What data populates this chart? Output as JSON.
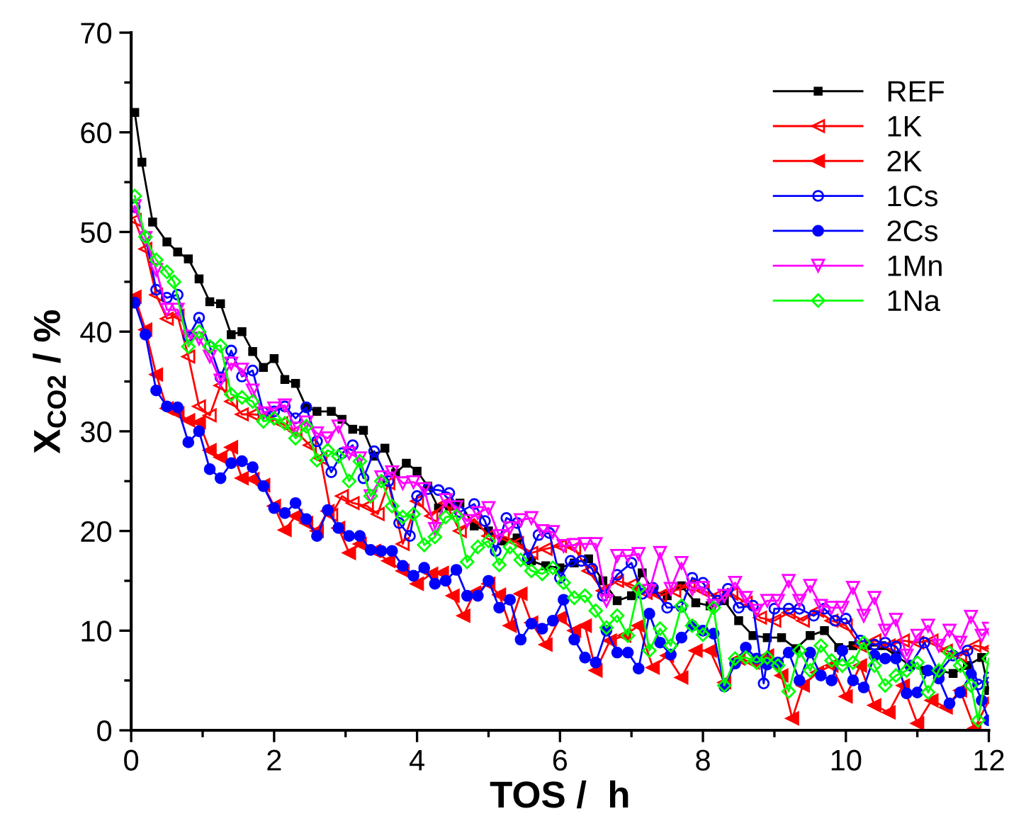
{
  "chart_data": {
    "type": "line",
    "xlabel": "TOS /  h",
    "ylabel": "X$_{CO2}$ / %",
    "xlim": [
      0,
      12
    ],
    "ylim": [
      0,
      70
    ],
    "xticks": [
      0,
      {
        "value": 1,
        "label": null
      },
      2,
      {
        "value": 3,
        "label": null
      },
      4,
      {
        "value": 5,
        "label": null
      },
      6,
      {
        "value": 7,
        "label": null
      },
      8,
      {
        "value": 9,
        "label": null
      },
      10,
      {
        "value": 11,
        "label": null
      },
      12
    ],
    "yticks": [
      0,
      {
        "value": 5,
        "label": null
      },
      10,
      {
        "value": 15,
        "label": null
      },
      20,
      {
        "value": 25,
        "label": null
      },
      30,
      {
        "value": 35,
        "label": null
      },
      40,
      {
        "value": 45,
        "label": null
      },
      50,
      {
        "value": 55,
        "label": null
      },
      60,
      {
        "value": 65,
        "label": null
      },
      70
    ],
    "grid": false,
    "legend": "top right",
    "line_style": "solid",
    "series": [
      {
        "name": "REF",
        "color": "#000000",
        "marker": "square",
        "x": [
          0.05,
          0.15,
          0.3,
          0.5,
          0.65,
          0.8,
          0.95,
          1.1,
          1.25,
          1.4,
          1.55,
          1.7,
          1.85,
          2,
          2.15,
          2.3,
          2.45,
          2.6,
          2.8,
          2.95,
          3.1,
          3.25,
          3.4,
          3.55,
          3.7,
          3.85,
          4,
          4.15,
          4.3,
          4.45,
          4.6,
          4.8,
          5,
          5.2,
          5.4,
          5.6,
          5.8,
          6,
          6.2,
          6.4,
          6.6,
          6.8,
          7,
          7.15,
          7.3,
          7.5,
          7.7,
          7.9,
          8.1,
          8.3,
          8.5,
          8.7,
          8.9,
          9.1,
          9.3,
          9.5,
          9.7,
          9.9,
          10.1,
          10.3,
          10.5,
          10.7,
          10.9,
          11.1,
          11.3,
          11.5,
          11.7,
          11.9,
          12
        ],
        "values": [
          62,
          57,
          51,
          49,
          48,
          47.3,
          45.3,
          43,
          42.8,
          39.7,
          40,
          38,
          36.4,
          37.3,
          35.2,
          34.8,
          32.4,
          32,
          32,
          31.2,
          30.2,
          30.1,
          27.5,
          28.3,
          25.8,
          26.8,
          26,
          24.5,
          22.3,
          22.5,
          22.8,
          20.5,
          20,
          19,
          19.3,
          17,
          16.5,
          16.3,
          16.8,
          17.2,
          15,
          13,
          13.5,
          15.8,
          14,
          13.5,
          14.5,
          12.8,
          12.5,
          13,
          11,
          9.5,
          9.3,
          9.3,
          8.2,
          9.5,
          10,
          8.3,
          8.5,
          8.5,
          8.5,
          7.5,
          6.5,
          6,
          6,
          5.7,
          6.5,
          7.3,
          4
        ]
      },
      {
        "name": "1K",
        "color": "#ff0000",
        "marker": "triangle-left-open",
        "x": [
          0.05,
          0.2,
          0.35,
          0.5,
          0.65,
          0.8,
          0.95,
          1.1,
          1.25,
          1.4,
          1.55,
          1.7,
          1.9,
          2.1,
          2.3,
          2.5,
          2.65,
          2.8,
          2.95,
          3.1,
          3.3,
          3.45,
          3.6,
          3.8,
          4,
          4.2,
          4.4,
          4.6,
          4.8,
          5,
          5.2,
          5.4,
          5.6,
          5.8,
          6,
          6.2,
          6.4,
          6.6,
          6.8,
          7,
          7.2,
          7.4,
          7.6,
          7.8,
          8,
          8.2,
          8.4,
          8.6,
          8.8,
          9,
          9.2,
          9.4,
          9.6,
          9.8,
          10,
          10.2,
          10.4,
          10.6,
          10.8,
          11,
          11.2,
          11.4,
          11.6,
          11.8,
          12
        ],
        "values": [
          51.2,
          48.3,
          43.7,
          41.3,
          41.6,
          37.5,
          32.5,
          31.6,
          34.6,
          33,
          31.7,
          31.7,
          31.6,
          30.8,
          30,
          28.6,
          27.3,
          21.6,
          23.5,
          22.8,
          22.5,
          21.7,
          24.8,
          18.7,
          23,
          21.5,
          22.8,
          20,
          21.2,
          19.5,
          19.5,
          18.8,
          17.8,
          18.2,
          18.5,
          18.3,
          16,
          14,
          15,
          14.6,
          13.8,
          13.5,
          14,
          14.5,
          14,
          13.5,
          13.7,
          12.8,
          11.3,
          11,
          11.8,
          11,
          12,
          11,
          10.5,
          8.5,
          9,
          8.5,
          9,
          8.8,
          9,
          8,
          7.5,
          8.5,
          8.2
        ]
      },
      {
        "name": "2K",
        "color": "#ff0000",
        "marker": "triangle-left",
        "x": [
          0.05,
          0.2,
          0.35,
          0.5,
          0.65,
          0.8,
          0.95,
          1.1,
          1.25,
          1.4,
          1.55,
          1.7,
          1.85,
          2,
          2.15,
          2.3,
          2.45,
          2.6,
          2.75,
          2.9,
          3.05,
          3.2,
          3.4,
          3.6,
          3.8,
          4,
          4.2,
          4.35,
          4.5,
          4.65,
          4.8,
          5,
          5.15,
          5.3,
          5.45,
          5.6,
          5.8,
          6,
          6.2,
          6.35,
          6.5,
          6.7,
          6.9,
          7.1,
          7.3,
          7.5,
          7.7,
          7.9,
          8.1,
          8.3,
          8.5,
          8.7,
          8.9,
          9.1,
          9.25,
          9.4,
          9.6,
          9.8,
          10,
          10.2,
          10.4,
          10.6,
          10.8,
          11,
          11.2,
          11.4,
          11.6,
          11.8,
          12
        ],
        "values": [
          43.5,
          40.2,
          35.7,
          32.3,
          31.8,
          31.1,
          30.9,
          28.1,
          27.4,
          28.4,
          25.3,
          25.2,
          24.6,
          22.5,
          20.1,
          21.5,
          20.8,
          20,
          22,
          20.3,
          17.8,
          18.7,
          18,
          17,
          16,
          14.7,
          15.7,
          15.8,
          13.5,
          11.5,
          13.8,
          14.7,
          13.6,
          10.5,
          13.7,
          10.8,
          8.6,
          11.3,
          10,
          10.5,
          6,
          9,
          9.5,
          10.5,
          6.3,
          7.5,
          5.3,
          8,
          8,
          4.8,
          7.2,
          6.8,
          7.5,
          5.5,
          1.2,
          4.5,
          5.8,
          6.5,
          3.4,
          6.5,
          2.5,
          1.8,
          4.5,
          0.7,
          3,
          2.3,
          4,
          0.2,
          3
        ]
      },
      {
        "name": "1Cs",
        "color": "#0000ff",
        "marker": "circle-open",
        "x": [
          0.05,
          0.2,
          0.35,
          0.5,
          0.65,
          0.8,
          0.95,
          1.1,
          1.25,
          1.4,
          1.55,
          1.7,
          1.85,
          2,
          2.15,
          2.3,
          2.45,
          2.6,
          2.8,
          2.95,
          3.1,
          3.25,
          3.4,
          3.6,
          3.75,
          3.9,
          4,
          4.15,
          4.3,
          4.45,
          4.6,
          4.8,
          4.95,
          5.1,
          5.25,
          5.4,
          5.55,
          5.7,
          5.85,
          6,
          6.15,
          6.3,
          6.45,
          6.6,
          6.8,
          7,
          7.15,
          7.3,
          7.5,
          7.7,
          7.85,
          8,
          8.2,
          8.35,
          8.5,
          8.7,
          8.85,
          9,
          9.2,
          9.35,
          9.55,
          9.7,
          9.85,
          10,
          10.2,
          10.4,
          10.55,
          10.7,
          10.9,
          11.1,
          11.3,
          11.5,
          11.7,
          11.85,
          12
        ],
        "values": [
          52.5,
          49.5,
          44.2,
          43.4,
          43.7,
          39.5,
          41.4,
          38.5,
          35.4,
          38.1,
          35.5,
          36.1,
          31.9,
          32,
          32.5,
          31.3,
          32.4,
          29,
          25.9,
          27.8,
          28.6,
          25.3,
          28,
          25,
          20.8,
          19.5,
          23.5,
          24.2,
          24.1,
          23.8,
          21.9,
          22.7,
          21,
          18,
          21.3,
          20.8,
          17.3,
          19.6,
          19.8,
          15.3,
          17,
          17,
          16.2,
          13.5,
          15.6,
          16.8,
          13.7,
          14.3,
          12.3,
          12.4,
          15.3,
          14.8,
          13,
          14.2,
          12.3,
          12.5,
          4.7,
          12.2,
          12.2,
          12.2,
          11.5,
          12.2,
          11,
          11.2,
          9,
          8.6,
          8.8,
          8.4,
          6.5,
          8.8,
          5.8,
          7.5,
          8,
          4.6,
          5.3
        ]
      },
      {
        "name": "2Cs",
        "color": "#0000ff",
        "marker": "circle",
        "x": [
          0.05,
          0.2,
          0.35,
          0.5,
          0.65,
          0.8,
          0.95,
          1.1,
          1.25,
          1.4,
          1.55,
          1.7,
          1.85,
          2,
          2.15,
          2.3,
          2.45,
          2.6,
          2.75,
          2.9,
          3.05,
          3.2,
          3.35,
          3.5,
          3.65,
          3.8,
          3.95,
          4.1,
          4.25,
          4.4,
          4.55,
          4.7,
          4.85,
          5,
          5.15,
          5.3,
          5.45,
          5.6,
          5.75,
          5.9,
          6.05,
          6.2,
          6.35,
          6.5,
          6.65,
          6.8,
          6.95,
          7.1,
          7.25,
          7.4,
          7.55,
          7.7,
          7.85,
          8,
          8.15,
          8.3,
          8.45,
          8.6,
          8.75,
          8.9,
          9.05,
          9.2,
          9.35,
          9.5,
          9.65,
          9.8,
          9.95,
          10.1,
          10.25,
          10.4,
          10.55,
          10.7,
          10.85,
          11,
          11.15,
          11.3,
          11.45,
          11.6,
          11.75,
          11.9,
          12
        ],
        "values": [
          42.9,
          39.7,
          34.1,
          32.5,
          32.4,
          28.9,
          30,
          26.2,
          25.3,
          26.8,
          27,
          26.4,
          24.5,
          22.3,
          21.8,
          22.8,
          21.2,
          19.5,
          22.1,
          20.3,
          19.5,
          19.5,
          18.1,
          18,
          18,
          16.5,
          15.5,
          16.3,
          14.7,
          15,
          16.1,
          13.5,
          13.5,
          15,
          12.3,
          13.1,
          9.1,
          10.7,
          10.2,
          11,
          13.1,
          9.1,
          7.3,
          6.8,
          10,
          7.8,
          7.8,
          6.2,
          11.7,
          8.8,
          7.6,
          9.3,
          10.5,
          10,
          9.7,
          4.4,
          6.7,
          8.3,
          7.2,
          6.6,
          6.8,
          7.8,
          5,
          7.8,
          5.5,
          5,
          8,
          5,
          4.3,
          7.5,
          7.2,
          7.2,
          3.7,
          3.8,
          6,
          5.2,
          2.7,
          3.8,
          5.6,
          3,
          1
        ]
      },
      {
        "name": "1Mn",
        "color": "#ff00ff",
        "marker": "triangle-down-open",
        "x": [
          0.05,
          0.2,
          0.35,
          0.5,
          0.65,
          0.8,
          0.95,
          1.1,
          1.25,
          1.4,
          1.55,
          1.7,
          1.85,
          2,
          2.15,
          2.3,
          2.45,
          2.6,
          2.75,
          2.9,
          3.05,
          3.2,
          3.35,
          3.5,
          3.65,
          3.8,
          3.95,
          4.1,
          4.25,
          4.4,
          4.55,
          4.7,
          4.85,
          5,
          5.15,
          5.3,
          5.45,
          5.6,
          5.75,
          5.9,
          6.05,
          6.2,
          6.35,
          6.5,
          6.65,
          6.8,
          6.95,
          7.1,
          7.25,
          7.4,
          7.55,
          7.7,
          7.85,
          8,
          8.15,
          8.3,
          8.45,
          8.6,
          8.75,
          8.9,
          9.05,
          9.2,
          9.35,
          9.5,
          9.65,
          9.8,
          9.95,
          10.1,
          10.25,
          10.4,
          10.55,
          10.7,
          10.85,
          11,
          11.15,
          11.3,
          11.45,
          11.6,
          11.75,
          11.9,
          12
        ],
        "values": [
          52.6,
          49.4,
          46.2,
          42.2,
          42.2,
          39.5,
          39.3,
          37.5,
          35.1,
          36.8,
          36.2,
          34.1,
          31.8,
          32.3,
          32.6,
          30.3,
          30.9,
          29.8,
          29.3,
          30.5,
          27.8,
          27.3,
          23.5,
          25.4,
          25.9,
          24.8,
          24.9,
          24.2,
          20.2,
          23.1,
          22.4,
          21,
          21.8,
          22.3,
          19.5,
          20.3,
          21.1,
          21.3,
          20,
          19.9,
          18.5,
          18.6,
          18.7,
          18.7,
          13,
          17.5,
          17.5,
          17.7,
          14,
          17.8,
          14.2,
          16.8,
          14.2,
          14.3,
          12.5,
          13.5,
          14.8,
          13.3,
          12,
          13,
          13,
          15,
          13,
          14.5,
          12.5,
          12.3,
          12.3,
          14.3,
          11.5,
          13.3,
          10,
          11.1,
          7.5,
          9.5,
          10.5,
          8.5,
          10,
          8.8,
          11.4,
          9.5,
          10.2
        ]
      },
      {
        "name": "1Na",
        "color": "#00ff00",
        "marker": "diamond-open",
        "x": [
          0.05,
          0.2,
          0.35,
          0.5,
          0.6,
          0.8,
          0.95,
          1.1,
          1.25,
          1.4,
          1.55,
          1.7,
          1.85,
          2,
          2.15,
          2.3,
          2.45,
          2.6,
          2.75,
          2.9,
          3.05,
          3.2,
          3.35,
          3.5,
          3.65,
          3.8,
          3.95,
          4.1,
          4.25,
          4.4,
          4.55,
          4.7,
          4.85,
          5,
          5.15,
          5.3,
          5.45,
          5.6,
          5.75,
          5.9,
          6.05,
          6.2,
          6.35,
          6.5,
          6.65,
          6.8,
          6.95,
          7.1,
          7.25,
          7.4,
          7.55,
          7.7,
          7.85,
          8,
          8.15,
          8.3,
          8.45,
          8.6,
          8.75,
          8.9,
          9.05,
          9.2,
          9.35,
          9.5,
          9.65,
          9.8,
          9.95,
          10.1,
          10.25,
          10.4,
          10.55,
          10.7,
          10.85,
          11,
          11.15,
          11.3,
          11.45,
          11.6,
          11.75,
          11.85,
          12
        ],
        "values": [
          53.6,
          49.5,
          47.2,
          46,
          45,
          38.5,
          40,
          38.5,
          38.6,
          33.7,
          33.4,
          33,
          31,
          31.3,
          30.8,
          29.3,
          30.5,
          27.1,
          28.1,
          27.5,
          25,
          27,
          23.5,
          25,
          22.5,
          21.4,
          21.7,
          18.6,
          19.4,
          21.4,
          21.5,
          16.9,
          18.4,
          19,
          16.6,
          18.4,
          17.1,
          16,
          15.7,
          16.3,
          14.8,
          13.3,
          13.5,
          12,
          10.3,
          11.5,
          9.5,
          14.2,
          8,
          10.2,
          8.5,
          12.5,
          10.5,
          9.6,
          12.3,
          4.5,
          7.2,
          7.3,
          6.8,
          7.3,
          6.5,
          3.9,
          8,
          6,
          8.5,
          7,
          6.5,
          6.8,
          8.8,
          6.5,
          4.5,
          5.5,
          6,
          6.8,
          3.8,
          6,
          7.8,
          6.5,
          4.5,
          1,
          7.2
        ]
      }
    ]
  }
}
